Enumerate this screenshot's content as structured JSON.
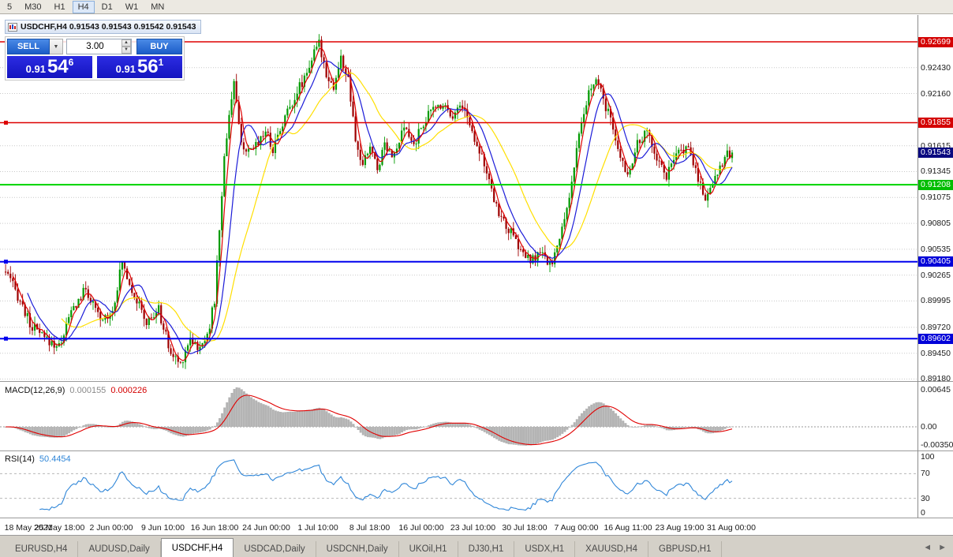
{
  "toolbar": {
    "timeframes": [
      "5",
      "M30",
      "H1",
      "H4",
      "D1",
      "W1",
      "MN"
    ],
    "active": "H4"
  },
  "chart_window": {
    "title": "USDCHF,H4 0.91543 0.91543 0.91542 0.91543",
    "one_click": {
      "sell_label": "SELL",
      "buy_label": "BUY",
      "volume": "3.00",
      "sell_price": {
        "small": "0.91",
        "big": "54",
        "sup": "6"
      },
      "buy_price": {
        "small": "0.91",
        "big": "56",
        "sup": "1"
      }
    }
  },
  "chart_data": {
    "type": "candlestick",
    "symbol": "USDCHF",
    "timeframe": "H4",
    "last_close": 0.91543,
    "y_range": [
      0.89159,
      0.92971
    ],
    "num_candles": 300,
    "up_color": "#009a00",
    "down_color": "#9e0000",
    "price_anchors": [
      [
        0,
        0.903
      ],
      [
        6,
        0.9
      ],
      [
        10,
        0.8975
      ],
      [
        16,
        0.896
      ],
      [
        22,
        0.8952
      ],
      [
        27,
        0.8988
      ],
      [
        33,
        0.9012
      ],
      [
        39,
        0.8978
      ],
      [
        44,
        0.899
      ],
      [
        48,
        0.904
      ],
      [
        52,
        0.9012
      ],
      [
        58,
        0.8976
      ],
      [
        63,
        0.899
      ],
      [
        68,
        0.8944
      ],
      [
        72,
        0.8934
      ],
      [
        76,
        0.8962
      ],
      [
        80,
        0.8948
      ],
      [
        84,
        0.8975
      ],
      [
        86,
        0.9
      ],
      [
        88,
        0.9075
      ],
      [
        90,
        0.9148
      ],
      [
        92,
        0.9196
      ],
      [
        94,
        0.9228
      ],
      [
        96,
        0.918
      ],
      [
        99,
        0.915
      ],
      [
        103,
        0.9163
      ],
      [
        107,
        0.9178
      ],
      [
        110,
        0.9158
      ],
      [
        114,
        0.9186
      ],
      [
        118,
        0.9208
      ],
      [
        122,
        0.9228
      ],
      [
        126,
        0.9252
      ],
      [
        129,
        0.9268
      ],
      [
        132,
        0.9238
      ],
      [
        135,
        0.9222
      ],
      [
        138,
        0.9252
      ],
      [
        141,
        0.923
      ],
      [
        144,
        0.9165
      ],
      [
        147,
        0.914
      ],
      [
        150,
        0.9162
      ],
      [
        153,
        0.9137
      ],
      [
        156,
        0.9165
      ],
      [
        160,
        0.915
      ],
      [
        164,
        0.918
      ],
      [
        168,
        0.9162
      ],
      [
        172,
        0.9186
      ],
      [
        176,
        0.92
      ],
      [
        180,
        0.9206
      ],
      [
        184,
        0.9194
      ],
      [
        188,
        0.9205
      ],
      [
        192,
        0.9176
      ],
      [
        196,
        0.9152
      ],
      [
        200,
        0.9112
      ],
      [
        204,
        0.9086
      ],
      [
        208,
        0.907
      ],
      [
        212,
        0.9052
      ],
      [
        216,
        0.904
      ],
      [
        220,
        0.905
      ],
      [
        224,
        0.9036
      ],
      [
        228,
        0.9062
      ],
      [
        232,
        0.911
      ],
      [
        236,
        0.917
      ],
      [
        240,
        0.9216
      ],
      [
        243,
        0.923
      ],
      [
        248,
        0.9196
      ],
      [
        252,
        0.9156
      ],
      [
        256,
        0.9132
      ],
      [
        260,
        0.9162
      ],
      [
        264,
        0.9176
      ],
      [
        268,
        0.915
      ],
      [
        272,
        0.913
      ],
      [
        276,
        0.915
      ],
      [
        280,
        0.9162
      ],
      [
        284,
        0.9136
      ],
      [
        288,
        0.9106
      ],
      [
        292,
        0.913
      ],
      [
        296,
        0.915
      ],
      [
        299,
        0.91543
      ]
    ],
    "moving_averages": [
      {
        "period": 4,
        "color": "#e00000"
      },
      {
        "period": 10,
        "color": "#1c1cd8"
      },
      {
        "period": 24,
        "color": "#ffdf00"
      }
    ],
    "price_ticks": [
      {
        "label": "0.92430",
        "value": 0.9243
      },
      {
        "label": "0.92160",
        "value": 0.9216
      },
      {
        "label": "0.91615",
        "value": 0.91615
      },
      {
        "label": "0.91345",
        "value": 0.91345
      },
      {
        "label": "0.91075",
        "value": 0.91075
      },
      {
        "label": "0.90805",
        "value": 0.90805
      },
      {
        "label": "0.90535",
        "value": 0.90535
      },
      {
        "label": "0.90265",
        "value": 0.90265
      },
      {
        "label": "0.89995",
        "value": 0.89995
      },
      {
        "label": "0.89720",
        "value": 0.8972
      },
      {
        "label": "0.89450",
        "value": 0.8945
      },
      {
        "label": "0.89180",
        "value": 0.8918
      }
    ],
    "levels": [
      {
        "price": 0.92699,
        "label": "0.92699",
        "color": "#dd0000",
        "badge_bg": "#d40000",
        "width": 1.4,
        "handle": false
      },
      {
        "price": 0.91855,
        "label": "0.91855",
        "color": "#dd0000",
        "badge_bg": "#d40000",
        "width": 1.4,
        "handle": true
      },
      {
        "price": 0.91208,
        "label": "0.91208",
        "color": "#00d400",
        "badge_bg": "#00bE00",
        "width": 2,
        "handle": false
      },
      {
        "price": 0.90405,
        "label": "0.90405",
        "color": "#0000ee",
        "badge_bg": "#0000d8",
        "width": 2,
        "handle": true
      },
      {
        "price": 0.89602,
        "label": "0.89602",
        "color": "#0000ee",
        "badge_bg": "#0000d8",
        "width": 2,
        "handle": true
      }
    ],
    "current_price_badge": {
      "label": "0.91543",
      "bg": "#0a0a80"
    },
    "time_labels": [
      "18 May 2021",
      "25 May 18:00",
      "2 Jun 00:00",
      "9 Jun 10:00",
      "16 Jun 18:00",
      "24 Jun 00:00",
      "1 Jul 10:00",
      "8 Jul 18:00",
      "16 Jul 00:00",
      "23 Jul 10:00",
      "30 Jul 18:00",
      "7 Aug 00:00",
      "16 Aug 11:00",
      "23 Aug 19:00",
      "31 Aug 00:00"
    ],
    "macd": {
      "label": "MACD(12,26,9)",
      "value_main": "0.000155",
      "value_signal": "0.000226",
      "fast": 12,
      "slow": 26,
      "signal": 9,
      "hist_color": "#b4b4b4",
      "signal_color": "#e00000",
      "axis_ticks": [
        "0.00645",
        "0.00",
        "-0.00350"
      ]
    },
    "rsi": {
      "label": "RSI(14)",
      "value": "50.4454",
      "period": 14,
      "color": "#2f86d8",
      "levels": [
        70,
        30
      ],
      "axis_ticks": [
        "100",
        "70",
        "30",
        "0"
      ]
    }
  },
  "tabs": {
    "items": [
      "EURUSD,H4",
      "AUDUSD,Daily",
      "USDCHF,H4",
      "USDCAD,Daily",
      "USDCNH,Daily",
      "UKOil,H1",
      "DJ30,H1",
      "USDX,H1",
      "XAUUSD,H4",
      "GBPUSD,H1"
    ],
    "active_index": 2,
    "scroll_left": "◄",
    "scroll_right": "►"
  }
}
